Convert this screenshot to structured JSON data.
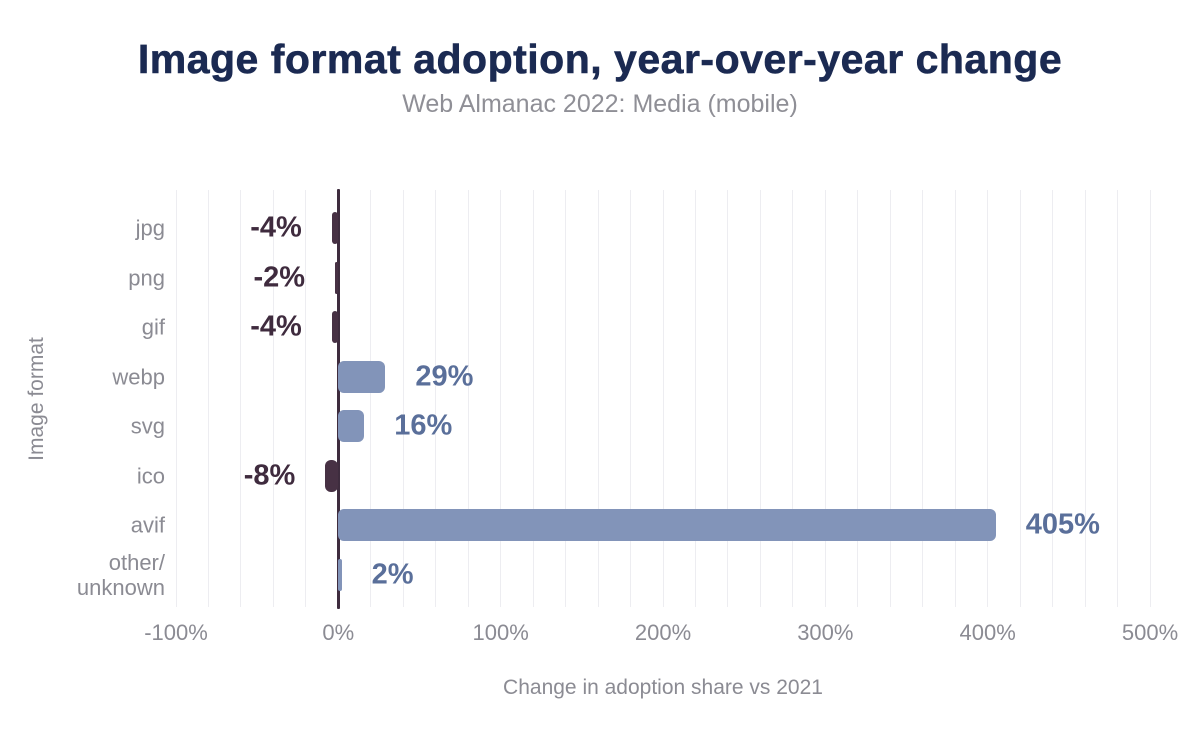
{
  "chart_data": {
    "type": "bar",
    "orientation": "horizontal",
    "title": "Image format adoption, year-over-year change",
    "subtitle": "Web Almanac 2022: Media (mobile)",
    "xlabel": "Change in adoption share vs 2021",
    "ylabel": "Image format",
    "categories": [
      "jpg",
      "png",
      "gif",
      "webp",
      "svg",
      "ico",
      "avif",
      "other/\nunknown"
    ],
    "values": [
      -4,
      -2,
      -4,
      29,
      16,
      -8,
      405,
      2
    ],
    "value_labels": [
      "-4%",
      "-2%",
      "-4%",
      "29%",
      "16%",
      "-8%",
      "405%",
      "2%"
    ],
    "xlim": [
      -100,
      500
    ],
    "x_ticks": [
      -100,
      0,
      100,
      200,
      300,
      400,
      500
    ],
    "x_tick_labels": [
      "-100%",
      "0%",
      "100%",
      "200%",
      "300%",
      "400%",
      "500%"
    ],
    "gridline_step": 20,
    "grid": "vertical-only",
    "legend": "none",
    "colors": {
      "background": "#ffffff",
      "title": "#1b2a52",
      "subtitle": "#8f8f96",
      "axis_text": "#8b8b93",
      "gridline": "#ededf1",
      "zero_line": "#3e2c3e",
      "positive_bar": "#8294b9",
      "negative_bar": "#473144",
      "positive_label": "#5a6f9a",
      "negative_label": "#3f2b3e"
    }
  }
}
